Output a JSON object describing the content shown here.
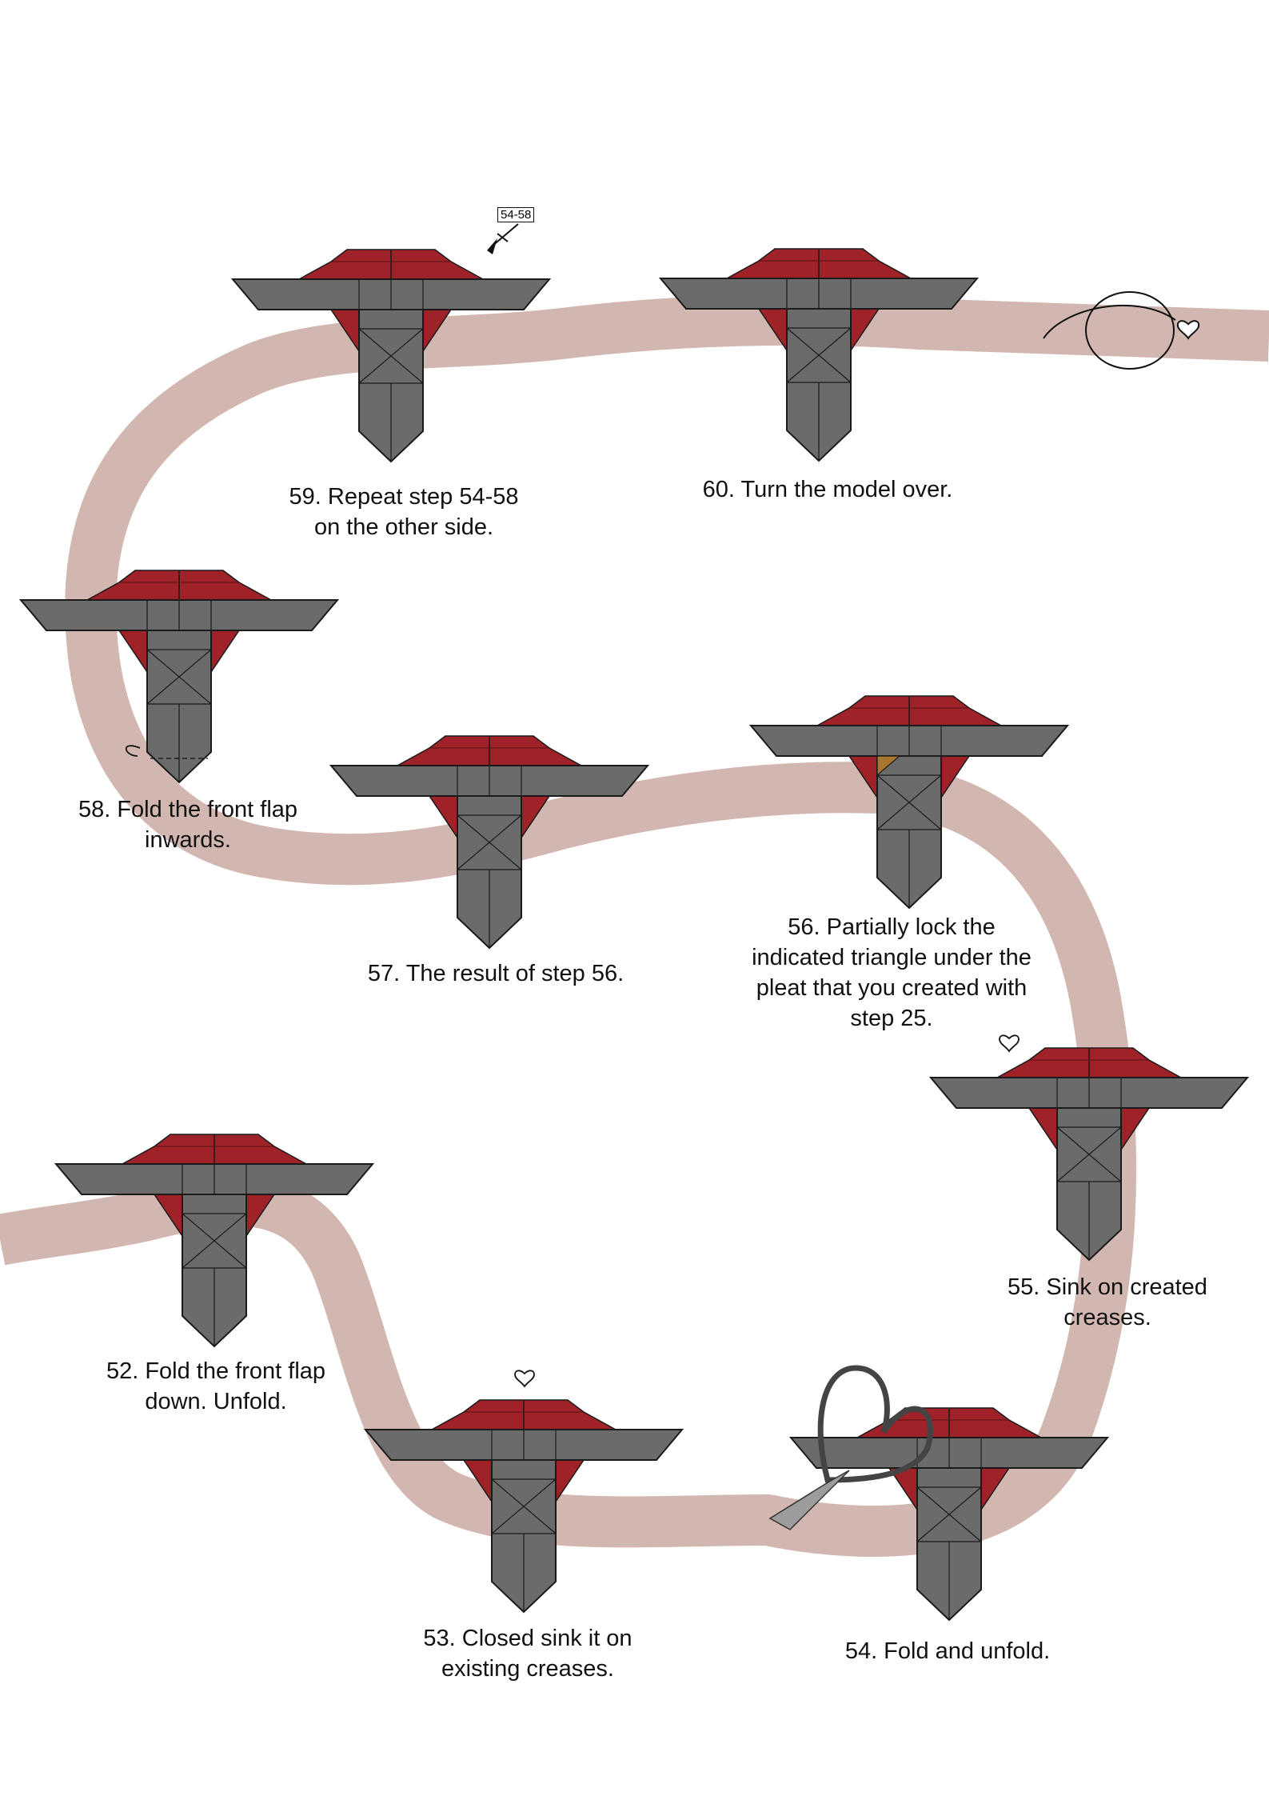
{
  "colors": {
    "background": "#ffffff",
    "path": "#d2b7b1",
    "paper_gray": "#6b6b6b",
    "paper_red": "#9e2228",
    "paper_highlight": "#a9752f",
    "outline": "#1a1a1a"
  },
  "steps": [
    {
      "id": "52",
      "lines": [
        "52. Fold the front flap",
        "down. Unfold."
      ]
    },
    {
      "id": "53",
      "lines": [
        "53. Closed sink it on",
        "existing creases."
      ]
    },
    {
      "id": "54",
      "lines": [
        "54. Fold and unfold."
      ]
    },
    {
      "id": "55",
      "lines": [
        "55. Sink on created",
        "creases."
      ]
    },
    {
      "id": "56",
      "lines": [
        "56. Partially lock the",
        "indicated triangle under the",
        "pleat that you created with",
        "step 25."
      ]
    },
    {
      "id": "57",
      "lines": [
        "57. The result of step 56."
      ]
    },
    {
      "id": "58",
      "lines": [
        "58. Fold the front flap",
        "inwards."
      ]
    },
    {
      "id": "59",
      "lines": [
        "59. Repeat step 54-58",
        "on the other side."
      ]
    },
    {
      "id": "60",
      "lines": [
        "60. Turn the model over."
      ]
    }
  ],
  "repeat_marker": {
    "label": "54-58"
  },
  "icons": [
    "heart-icon",
    "turn-over-icon",
    "repeat-arrow-icon",
    "fold-arrow-icon",
    "magnifier-icon"
  ]
}
